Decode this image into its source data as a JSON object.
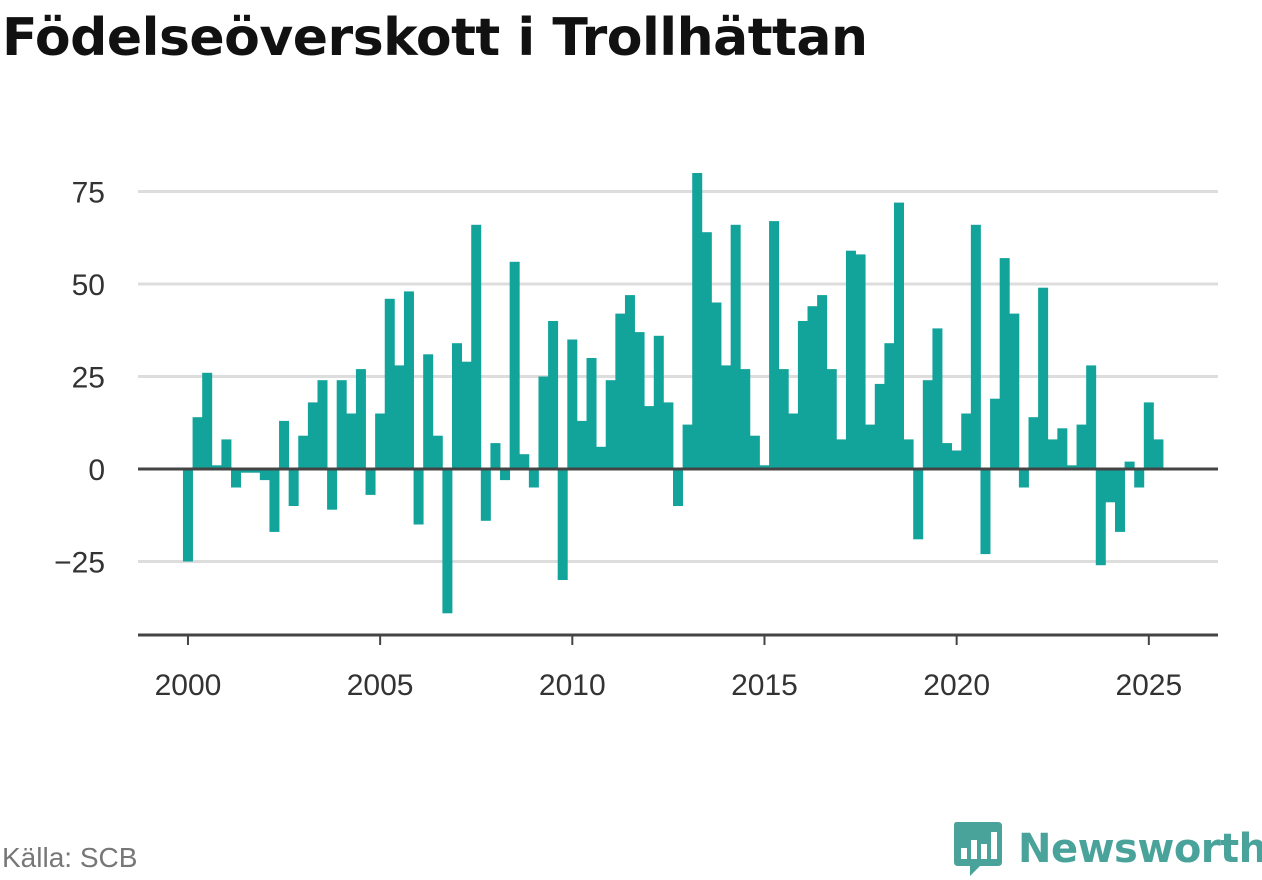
{
  "title": "Födelseöverskott i Trollhättan",
  "source": "Källa: SCB",
  "brand": {
    "name": "Newsworthy",
    "icon": "newsworthy-logo-icon"
  },
  "colors": {
    "bar": "#12a39a",
    "grid": "#dddddd",
    "zero": "#444444",
    "brand": "#4aa39a"
  },
  "chart_data": {
    "type": "bar",
    "x_start": 2000.0,
    "x_step": 0.25,
    "values": [
      -25,
      14,
      26,
      1,
      8,
      -5,
      -1,
      -1,
      -3,
      -17,
      13,
      -10,
      9,
      18,
      24,
      -11,
      24,
      15,
      27,
      -7,
      15,
      46,
      28,
      48,
      -15,
      31,
      9,
      -39,
      34,
      29,
      66,
      -14,
      7,
      -3,
      56,
      4,
      -5,
      25,
      40,
      -30,
      35,
      13,
      30,
      6,
      24,
      42,
      47,
      37,
      17,
      36,
      18,
      -10,
      12,
      80,
      64,
      45,
      28,
      66,
      27,
      9,
      1,
      67,
      27,
      15,
      40,
      44,
      47,
      27,
      8,
      59,
      58,
      12,
      23,
      34,
      72,
      8,
      -19,
      24,
      38,
      7,
      5,
      15,
      66,
      -23,
      19,
      57,
      42,
      -5,
      14,
      49,
      8,
      11,
      1,
      12,
      28,
      -26,
      -9,
      -17,
      2,
      -5,
      18,
      8
    ],
    "xlim": [
      1998.7,
      2026.8
    ],
    "ylim": [
      -45,
      85
    ],
    "yticks": [
      -25,
      0,
      25,
      50,
      75
    ],
    "ytick_labels": [
      "−25",
      "0",
      "25",
      "50",
      "75"
    ],
    "xticks": [
      2000,
      2005,
      2010,
      2015,
      2020,
      2025
    ],
    "xtick_labels": [
      "2000",
      "2005",
      "2010",
      "2015",
      "2020",
      "2025"
    ],
    "grid": true
  }
}
